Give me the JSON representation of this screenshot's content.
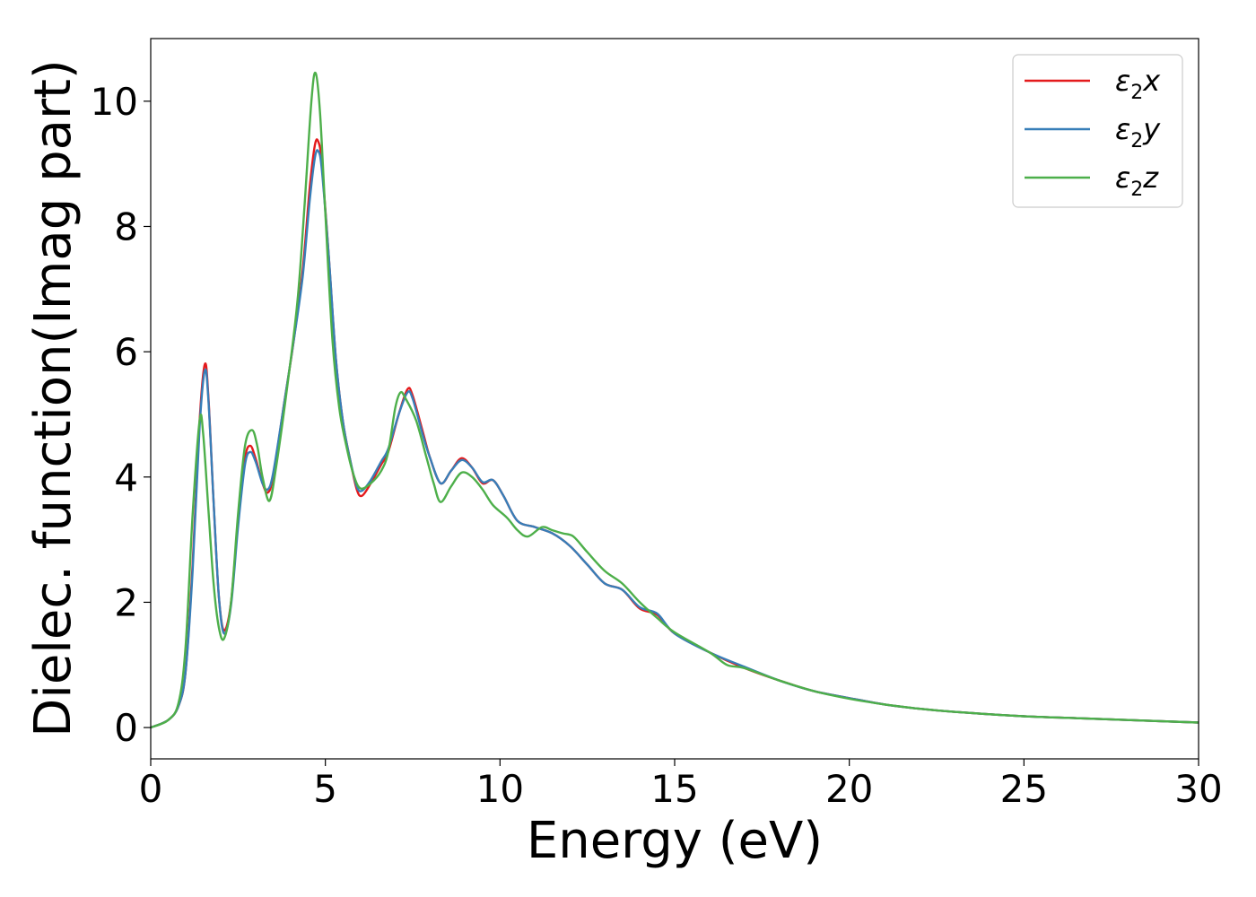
{
  "chart_data": {
    "type": "line",
    "xlabel": "Energy (eV)",
    "ylabel": "Dielec. function(Imag part)",
    "xlim": [
      0,
      30
    ],
    "ylim": [
      -0.5,
      11
    ],
    "xticks": [
      0,
      5,
      10,
      15,
      20,
      25,
      30
    ],
    "yticks": [
      0,
      2,
      4,
      6,
      8,
      10
    ],
    "grid": false,
    "legend_position": "top-right",
    "series": [
      {
        "name": "x",
        "legend_symbol": "ε",
        "legend_subscript": "2",
        "color": "#e41a1c",
        "points": [
          [
            0,
            0
          ],
          [
            0.5,
            0.12
          ],
          [
            0.8,
            0.35
          ],
          [
            1.0,
            0.9
          ],
          [
            1.2,
            2.6
          ],
          [
            1.4,
            4.9
          ],
          [
            1.55,
            5.8
          ],
          [
            1.65,
            5.3
          ],
          [
            1.8,
            3.6
          ],
          [
            1.95,
            2.1
          ],
          [
            2.1,
            1.55
          ],
          [
            2.3,
            2.0
          ],
          [
            2.5,
            3.3
          ],
          [
            2.7,
            4.3
          ],
          [
            2.85,
            4.5
          ],
          [
            3.0,
            4.3
          ],
          [
            3.2,
            3.9
          ],
          [
            3.35,
            3.75
          ],
          [
            3.5,
            4.0
          ],
          [
            3.8,
            5.1
          ],
          [
            4.1,
            6.2
          ],
          [
            4.35,
            7.3
          ],
          [
            4.55,
            8.6
          ],
          [
            4.7,
            9.3
          ],
          [
            4.8,
            9.35
          ],
          [
            4.9,
            9.0
          ],
          [
            5.1,
            7.5
          ],
          [
            5.3,
            5.9
          ],
          [
            5.5,
            4.9
          ],
          [
            5.7,
            4.3
          ],
          [
            5.9,
            3.8
          ],
          [
            6.05,
            3.7
          ],
          [
            6.3,
            3.9
          ],
          [
            6.6,
            4.2
          ],
          [
            6.8,
            4.4
          ],
          [
            7.1,
            5.0
          ],
          [
            7.35,
            5.4
          ],
          [
            7.5,
            5.3
          ],
          [
            7.8,
            4.7
          ],
          [
            8.0,
            4.3
          ],
          [
            8.3,
            3.9
          ],
          [
            8.6,
            4.1
          ],
          [
            8.9,
            4.3
          ],
          [
            9.2,
            4.15
          ],
          [
            9.5,
            3.9
          ],
          [
            9.8,
            3.95
          ],
          [
            10.1,
            3.7
          ],
          [
            10.5,
            3.3
          ],
          [
            11.0,
            3.2
          ],
          [
            11.5,
            3.1
          ],
          [
            12.0,
            2.9
          ],
          [
            12.5,
            2.6
          ],
          [
            13.0,
            2.3
          ],
          [
            13.5,
            2.2
          ],
          [
            14.0,
            1.9
          ],
          [
            14.5,
            1.8
          ],
          [
            15.0,
            1.5
          ],
          [
            16.0,
            1.2
          ],
          [
            17.0,
            0.95
          ],
          [
            18.0,
            0.75
          ],
          [
            19.0,
            0.58
          ],
          [
            20.0,
            0.47
          ],
          [
            21.0,
            0.37
          ],
          [
            22.0,
            0.3
          ],
          [
            23.0,
            0.25
          ],
          [
            25.0,
            0.18
          ],
          [
            27.0,
            0.14
          ],
          [
            30.0,
            0.08
          ]
        ]
      },
      {
        "name": "y",
        "legend_symbol": "ε",
        "legend_subscript": "2",
        "color": "#377eb8",
        "points": [
          [
            0,
            0
          ],
          [
            0.5,
            0.12
          ],
          [
            0.8,
            0.35
          ],
          [
            1.0,
            0.9
          ],
          [
            1.2,
            2.5
          ],
          [
            1.4,
            4.8
          ],
          [
            1.55,
            5.7
          ],
          [
            1.65,
            5.25
          ],
          [
            1.8,
            3.6
          ],
          [
            1.95,
            2.1
          ],
          [
            2.1,
            1.5
          ],
          [
            2.3,
            1.95
          ],
          [
            2.5,
            3.2
          ],
          [
            2.7,
            4.2
          ],
          [
            2.85,
            4.4
          ],
          [
            3.0,
            4.25
          ],
          [
            3.2,
            3.9
          ],
          [
            3.35,
            3.8
          ],
          [
            3.5,
            4.05
          ],
          [
            3.8,
            5.1
          ],
          [
            4.1,
            6.2
          ],
          [
            4.35,
            7.2
          ],
          [
            4.55,
            8.4
          ],
          [
            4.7,
            9.1
          ],
          [
            4.8,
            9.2
          ],
          [
            4.9,
            8.9
          ],
          [
            5.1,
            7.5
          ],
          [
            5.3,
            5.9
          ],
          [
            5.5,
            4.9
          ],
          [
            5.7,
            4.3
          ],
          [
            5.9,
            3.85
          ],
          [
            6.05,
            3.78
          ],
          [
            6.3,
            3.95
          ],
          [
            6.6,
            4.25
          ],
          [
            6.8,
            4.45
          ],
          [
            7.1,
            5.0
          ],
          [
            7.35,
            5.35
          ],
          [
            7.5,
            5.25
          ],
          [
            7.8,
            4.65
          ],
          [
            8.0,
            4.3
          ],
          [
            8.3,
            3.9
          ],
          [
            8.6,
            4.1
          ],
          [
            8.9,
            4.27
          ],
          [
            9.2,
            4.15
          ],
          [
            9.5,
            3.92
          ],
          [
            9.8,
            3.95
          ],
          [
            10.1,
            3.7
          ],
          [
            10.5,
            3.3
          ],
          [
            11.0,
            3.2
          ],
          [
            11.5,
            3.1
          ],
          [
            12.0,
            2.9
          ],
          [
            12.5,
            2.6
          ],
          [
            13.0,
            2.3
          ],
          [
            13.5,
            2.2
          ],
          [
            14.0,
            1.92
          ],
          [
            14.5,
            1.82
          ],
          [
            15.0,
            1.5
          ],
          [
            16.0,
            1.2
          ],
          [
            17.0,
            0.97
          ],
          [
            18.0,
            0.75
          ],
          [
            19.0,
            0.58
          ],
          [
            20.0,
            0.47
          ],
          [
            21.0,
            0.37
          ],
          [
            22.0,
            0.3
          ],
          [
            23.0,
            0.25
          ],
          [
            25.0,
            0.18
          ],
          [
            27.0,
            0.14
          ],
          [
            30.0,
            0.08
          ]
        ]
      },
      {
        "name": "z",
        "legend_symbol": "ε",
        "legend_subscript": "2",
        "color": "#4daf4a",
        "points": [
          [
            0,
            0
          ],
          [
            0.5,
            0.12
          ],
          [
            0.8,
            0.4
          ],
          [
            1.0,
            1.3
          ],
          [
            1.2,
            3.4
          ],
          [
            1.4,
            4.9
          ],
          [
            1.5,
            4.7
          ],
          [
            1.65,
            3.5
          ],
          [
            1.8,
            2.3
          ],
          [
            1.95,
            1.6
          ],
          [
            2.1,
            1.42
          ],
          [
            2.3,
            2.0
          ],
          [
            2.5,
            3.4
          ],
          [
            2.7,
            4.5
          ],
          [
            2.9,
            4.75
          ],
          [
            3.05,
            4.5
          ],
          [
            3.2,
            4.0
          ],
          [
            3.4,
            3.62
          ],
          [
            3.6,
            4.2
          ],
          [
            3.9,
            5.4
          ],
          [
            4.2,
            6.8
          ],
          [
            4.4,
            8.3
          ],
          [
            4.6,
            10.0
          ],
          [
            4.72,
            10.45
          ],
          [
            4.85,
            9.8
          ],
          [
            5.0,
            8.2
          ],
          [
            5.2,
            6.2
          ],
          [
            5.4,
            5.1
          ],
          [
            5.6,
            4.5
          ],
          [
            5.8,
            4.05
          ],
          [
            6.0,
            3.82
          ],
          [
            6.3,
            3.9
          ],
          [
            6.6,
            4.1
          ],
          [
            6.8,
            4.4
          ],
          [
            7.0,
            5.1
          ],
          [
            7.15,
            5.35
          ],
          [
            7.3,
            5.25
          ],
          [
            7.6,
            4.9
          ],
          [
            7.9,
            4.3
          ],
          [
            8.1,
            3.9
          ],
          [
            8.3,
            3.6
          ],
          [
            8.6,
            3.85
          ],
          [
            8.9,
            4.07
          ],
          [
            9.2,
            4.0
          ],
          [
            9.5,
            3.8
          ],
          [
            9.8,
            3.55
          ],
          [
            10.2,
            3.35
          ],
          [
            10.5,
            3.15
          ],
          [
            10.8,
            3.05
          ],
          [
            11.2,
            3.2
          ],
          [
            11.5,
            3.15
          ],
          [
            11.8,
            3.1
          ],
          [
            12.1,
            3.05
          ],
          [
            12.5,
            2.8
          ],
          [
            13.0,
            2.5
          ],
          [
            13.5,
            2.3
          ],
          [
            14.0,
            2.0
          ],
          [
            14.5,
            1.75
          ],
          [
            15.0,
            1.52
          ],
          [
            16.0,
            1.2
          ],
          [
            16.5,
            1.0
          ],
          [
            17.0,
            0.95
          ],
          [
            18.0,
            0.75
          ],
          [
            19.0,
            0.58
          ],
          [
            20.0,
            0.46
          ],
          [
            21.0,
            0.37
          ],
          [
            22.0,
            0.3
          ],
          [
            23.0,
            0.25
          ],
          [
            25.0,
            0.18
          ],
          [
            27.0,
            0.14
          ],
          [
            30.0,
            0.08
          ]
        ]
      }
    ]
  }
}
